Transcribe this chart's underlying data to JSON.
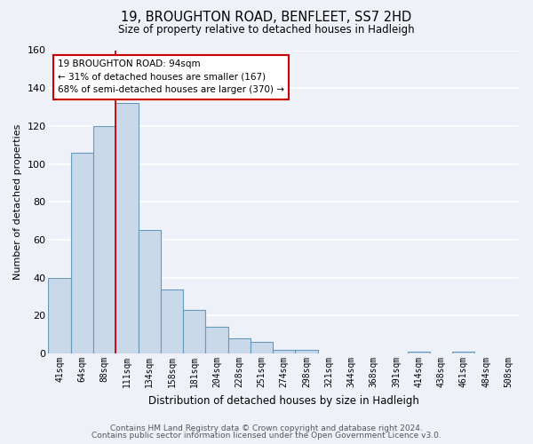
{
  "title": "19, BROUGHTON ROAD, BENFLEET, SS7 2HD",
  "subtitle": "Size of property relative to detached houses in Hadleigh",
  "xlabel": "Distribution of detached houses by size in Hadleigh",
  "ylabel": "Number of detached properties",
  "bar_labels": [
    "41sqm",
    "64sqm",
    "88sqm",
    "111sqm",
    "134sqm",
    "158sqm",
    "181sqm",
    "204sqm",
    "228sqm",
    "251sqm",
    "274sqm",
    "298sqm",
    "321sqm",
    "344sqm",
    "368sqm",
    "391sqm",
    "414sqm",
    "438sqm",
    "461sqm",
    "484sqm",
    "508sqm"
  ],
  "bar_values": [
    40,
    106,
    120,
    132,
    65,
    34,
    23,
    14,
    8,
    6,
    2,
    2,
    0,
    0,
    0,
    0,
    1,
    0,
    1,
    0,
    0
  ],
  "bar_color": "#c9d9ea",
  "bar_edge_color": "#6699bb",
  "background_color": "#eef2f8",
  "grid_color": "#ffffff",
  "redline_x": 2.5,
  "annotation_line1": "19 BROUGHTON ROAD: 94sqm",
  "annotation_line2": "← 31% of detached houses are smaller (167)",
  "annotation_line3": "68% of semi-detached houses are larger (370) →",
  "annotation_box_color": "#ffffff",
  "annotation_box_edge": "#cc0000",
  "ylim": [
    0,
    160
  ],
  "yticks": [
    0,
    20,
    40,
    60,
    80,
    100,
    120,
    140,
    160
  ],
  "footer1": "Contains HM Land Registry data © Crown copyright and database right 2024.",
  "footer2": "Contains public sector information licensed under the Open Government Licence v3.0."
}
